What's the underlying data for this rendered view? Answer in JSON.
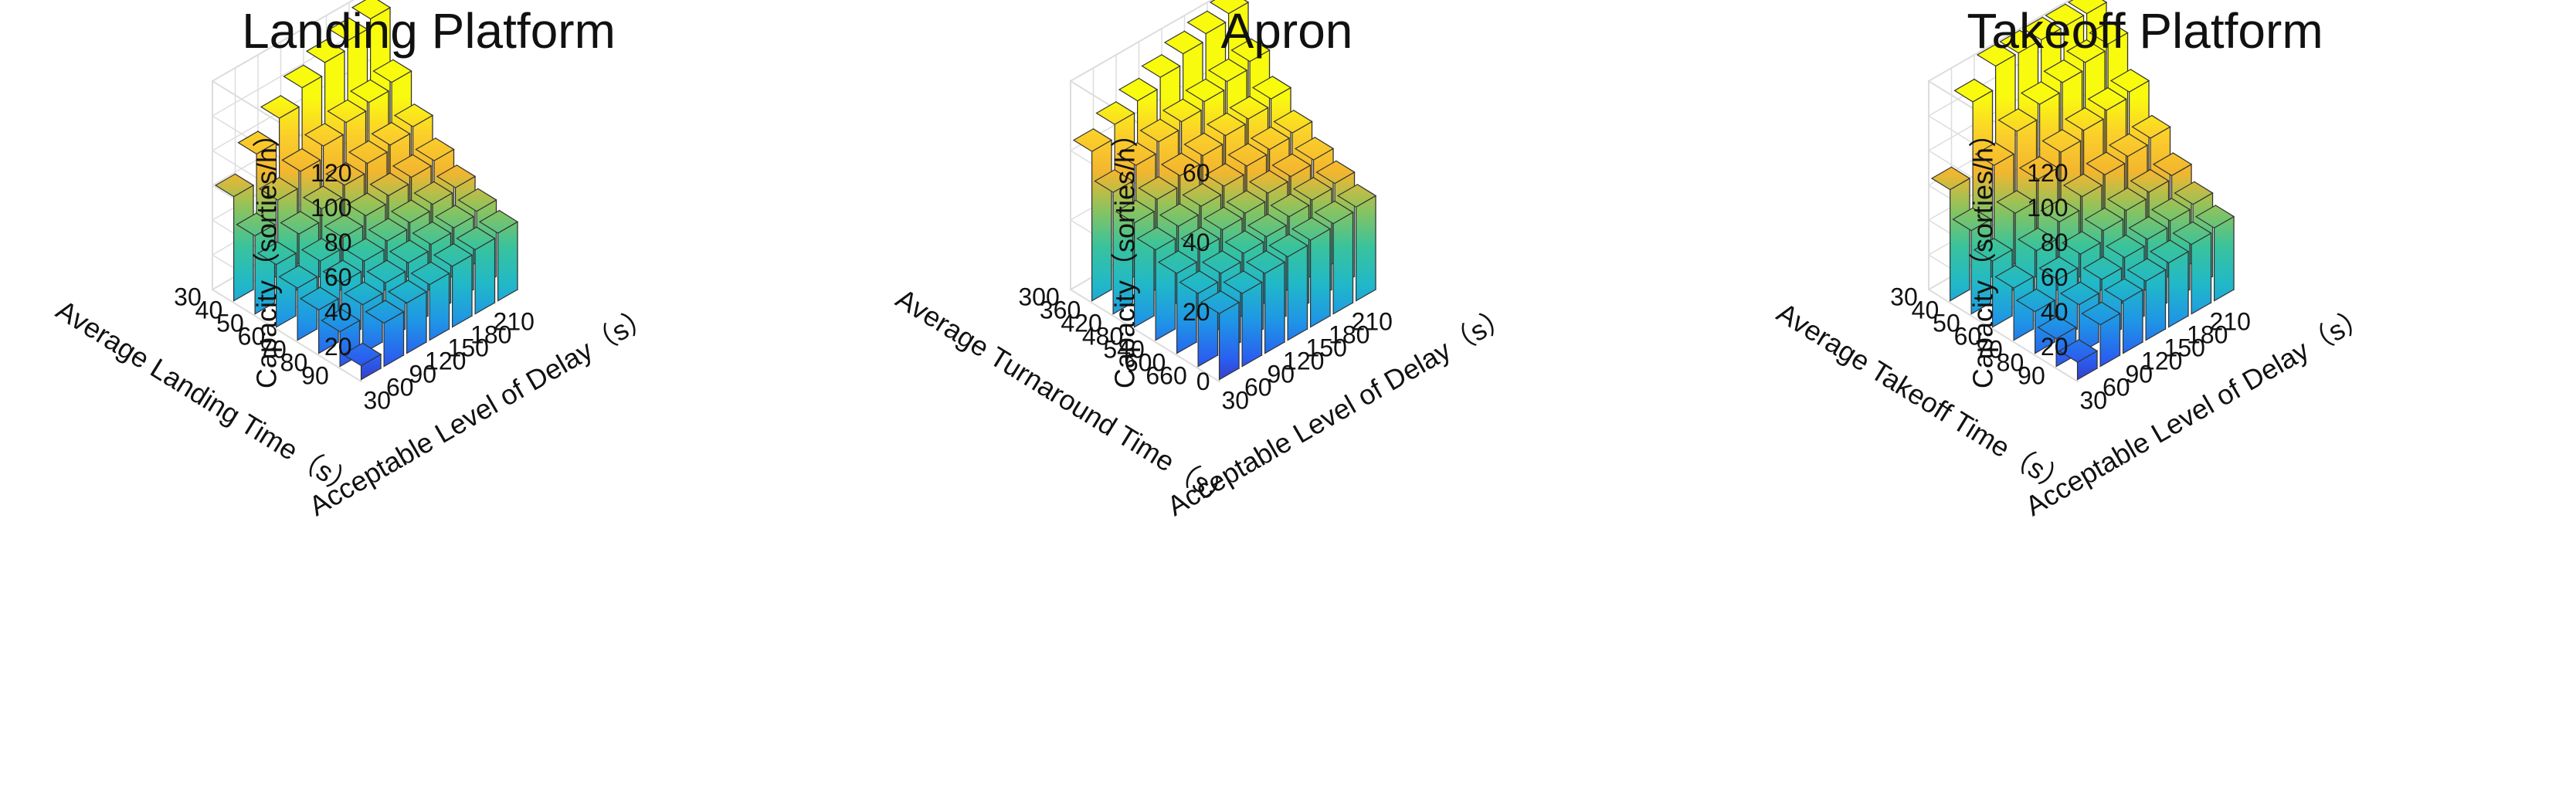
{
  "colors": {
    "gradient": [
      "#3e26a8",
      "#2a5ef0",
      "#1f95e6",
      "#21b8c8",
      "#39c39c",
      "#8bc35e",
      "#f3b62f",
      "#fbd02a",
      "#f9fb0e"
    ],
    "edge": "#333333",
    "grid": "#dddddd"
  },
  "chart_data": [
    {
      "type": "bar3d",
      "title": "Landing Platform",
      "xlabel": "Acceptable Level of Delay（s）",
      "ylabel": "Average Landing Time（s）",
      "zlabel": "Capacity（sorties/h）",
      "x_ticks": [
        "30",
        "60",
        "90",
        "120",
        "150",
        "180",
        "210"
      ],
      "y_ticks": [
        "30",
        "40",
        "50",
        "60",
        "70",
        "80",
        "90"
      ],
      "z_ticks": [
        "20",
        "40",
        "60",
        "80",
        "100",
        "120"
      ],
      "zlim": [
        0,
        120
      ],
      "grid": true,
      "values": [
        [
          60,
          77,
          90,
          100,
          107,
          112,
          117
        ],
        [
          45,
          58,
          67,
          74,
          80,
          84,
          88
        ],
        [
          36,
          46,
          53,
          59,
          64,
          67,
          70
        ],
        [
          30,
          38,
          44,
          49,
          53,
          56,
          58
        ],
        [
          25,
          33,
          38,
          42,
          45,
          48,
          50
        ],
        [
          20,
          28,
          33,
          37,
          40,
          42,
          44
        ],
        [
          8,
          25,
          29,
          32,
          35,
          37,
          39
        ]
      ]
    },
    {
      "type": "bar3d",
      "title": "Apron",
      "xlabel": "Acceptable Level of Delay（s）",
      "ylabel": "Average Turnaround Time（s）",
      "zlabel": "Capacity（sorties/h）",
      "x_ticks": [
        "30",
        "60",
        "90",
        "120",
        "150",
        "180",
        "210"
      ],
      "y_ticks": [
        "300",
        "360",
        "420",
        "480",
        "540",
        "600",
        "660"
      ],
      "z_ticks": [
        "0",
        "20",
        "40",
        "60"
      ],
      "zlim": [
        0,
        60
      ],
      "grid": true,
      "values": [
        [
          43,
          47,
          50,
          53,
          56,
          58,
          60
        ],
        [
          35,
          39,
          42,
          44,
          46,
          48,
          50
        ],
        [
          30,
          33,
          36,
          38,
          40,
          41,
          43
        ],
        [
          26,
          29,
          31,
          33,
          35,
          36,
          37
        ],
        [
          23,
          26,
          28,
          29,
          31,
          32,
          33
        ],
        [
          21,
          23,
          25,
          26,
          28,
          29,
          30
        ],
        [
          19,
          21,
          23,
          24,
          25,
          26,
          27
        ]
      ]
    },
    {
      "type": "bar3d",
      "title": "Takeoff Platform",
      "xlabel": "Acceptable Level of Delay（s）",
      "ylabel": "Average Takeoff Time（s）",
      "zlabel": "Capacity（sorties/h）",
      "x_ticks": [
        "30",
        "60",
        "90",
        "120",
        "150",
        "180",
        "210"
      ],
      "y_ticks": [
        "30",
        "40",
        "50",
        "60",
        "70",
        "80",
        "90"
      ],
      "z_ticks": [
        "20",
        "40",
        "60",
        "80",
        "100",
        "120"
      ],
      "zlim": [
        0,
        120
      ],
      "grid": true,
      "values": [
        [
          64,
          107,
          120,
          120,
          120,
          120,
          120
        ],
        [
          48,
          78,
          90,
          98,
          103,
          107,
          110
        ],
        [
          38,
          58,
          70,
          78,
          83,
          87,
          90
        ],
        [
          30,
          44,
          53,
          60,
          65,
          68,
          71
        ],
        [
          24,
          35,
          42,
          48,
          52,
          55,
          57
        ],
        [
          16,
          28,
          35,
          40,
          43,
          46,
          48
        ],
        [
          10,
          24,
          30,
          34,
          37,
          40,
          42
        ]
      ]
    }
  ]
}
